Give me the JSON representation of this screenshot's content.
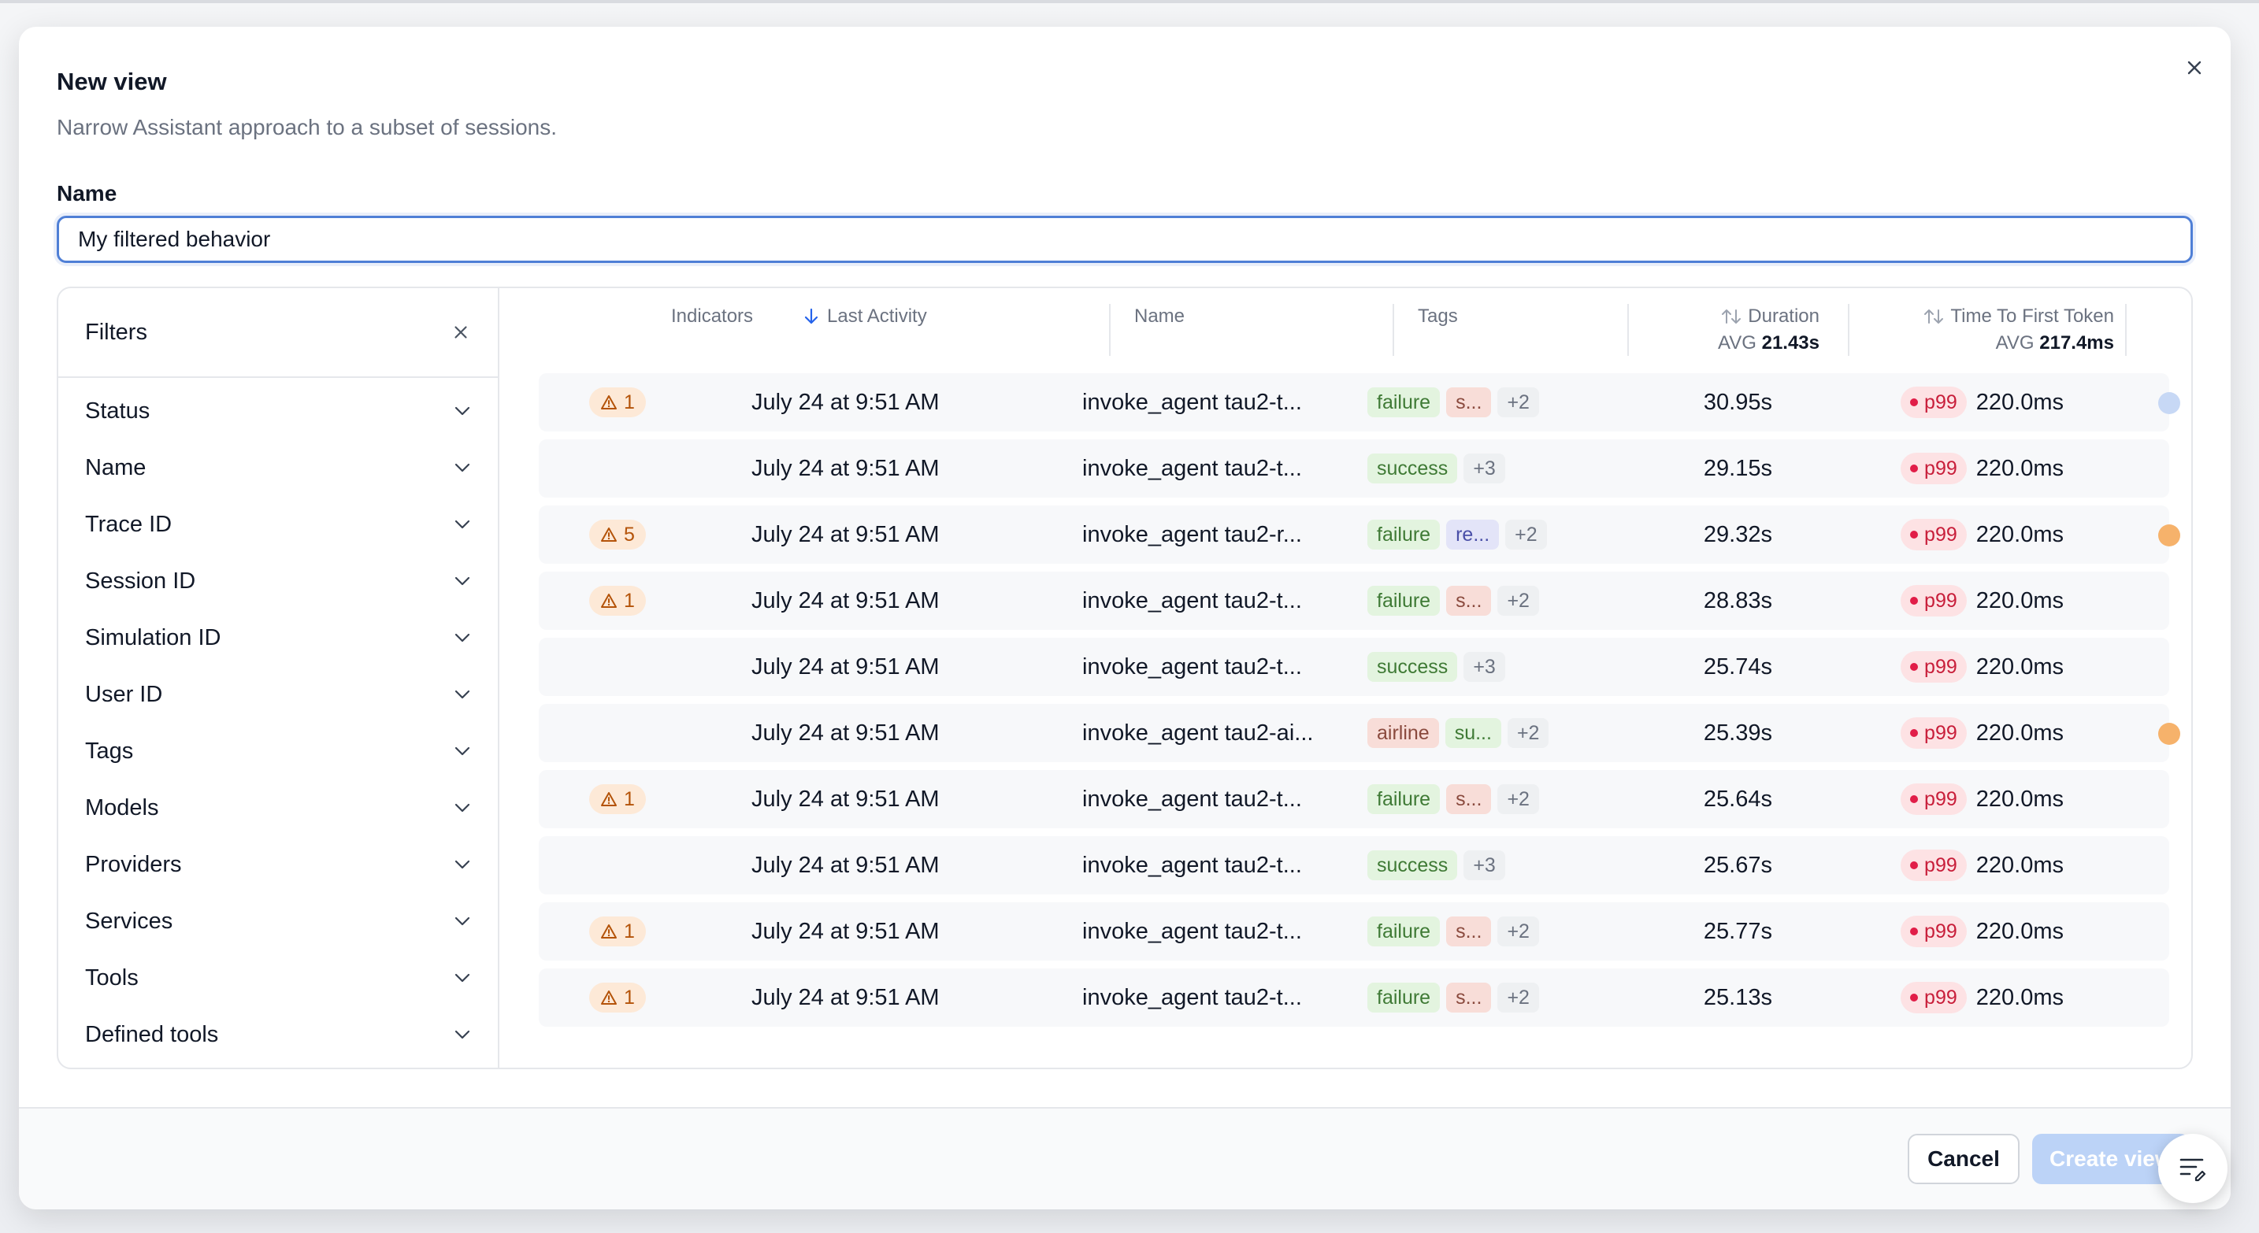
{
  "dialog": {
    "title": "New view",
    "subtitle": "Narrow Assistant approach to a subset of sessions.",
    "name_label": "Name",
    "name_value": "My filtered behavior"
  },
  "filters": {
    "title": "Filters",
    "items": [
      "Status",
      "Name",
      "Trace ID",
      "Session ID",
      "Simulation ID",
      "User ID",
      "Tags",
      "Models",
      "Providers",
      "Services",
      "Tools",
      "Defined tools"
    ]
  },
  "table": {
    "columns": {
      "indicators": "Indicators",
      "last_activity": "Last Activity",
      "name": "Name",
      "tags": "Tags",
      "duration": "Duration",
      "duration_avg_label": "AVG",
      "duration_avg": "21.43s",
      "ttft": "Time To First Token",
      "ttft_avg_label": "AVG",
      "ttft_avg": "217.4ms"
    },
    "rows": [
      {
        "indicator": "1",
        "last_activity": "July 24 at 9:51 AM",
        "name": "invoke_agent tau2-t...",
        "tags": [
          {
            "text": "failure",
            "kind": "failure"
          },
          {
            "text": "s...",
            "kind": "s"
          },
          {
            "text": "+2",
            "kind": "more"
          }
        ],
        "duration": "30.95s",
        "ttft_badge": "p99",
        "ttft": "220.0ms",
        "edge": "blue"
      },
      {
        "indicator": "",
        "last_activity": "July 24 at 9:51 AM",
        "name": "invoke_agent tau2-t...",
        "tags": [
          {
            "text": "success",
            "kind": "success"
          },
          {
            "text": "+3",
            "kind": "more"
          }
        ],
        "duration": "29.15s",
        "ttft_badge": "p99",
        "ttft": "220.0ms",
        "edge": ""
      },
      {
        "indicator": "5",
        "last_activity": "July 24 at 9:51 AM",
        "name": "invoke_agent tau2-r...",
        "tags": [
          {
            "text": "failure",
            "kind": "failure"
          },
          {
            "text": "re...",
            "kind": "re"
          },
          {
            "text": "+2",
            "kind": "more"
          }
        ],
        "duration": "29.32s",
        "ttft_badge": "p99",
        "ttft": "220.0ms",
        "edge": "orange"
      },
      {
        "indicator": "1",
        "last_activity": "July 24 at 9:51 AM",
        "name": "invoke_agent tau2-t...",
        "tags": [
          {
            "text": "failure",
            "kind": "failure"
          },
          {
            "text": "s...",
            "kind": "s"
          },
          {
            "text": "+2",
            "kind": "more"
          }
        ],
        "duration": "28.83s",
        "ttft_badge": "p99",
        "ttft": "220.0ms",
        "edge": ""
      },
      {
        "indicator": "",
        "last_activity": "July 24 at 9:51 AM",
        "name": "invoke_agent tau2-t...",
        "tags": [
          {
            "text": "success",
            "kind": "success"
          },
          {
            "text": "+3",
            "kind": "more"
          }
        ],
        "duration": "25.74s",
        "ttft_badge": "p99",
        "ttft": "220.0ms",
        "edge": ""
      },
      {
        "indicator": "",
        "last_activity": "July 24 at 9:51 AM",
        "name": "invoke_agent tau2-ai...",
        "tags": [
          {
            "text": "airline",
            "kind": "airline"
          },
          {
            "text": "su...",
            "kind": "su"
          },
          {
            "text": "+2",
            "kind": "more"
          }
        ],
        "duration": "25.39s",
        "ttft_badge": "p99",
        "ttft": "220.0ms",
        "edge": "orange"
      },
      {
        "indicator": "1",
        "last_activity": "July 24 at 9:51 AM",
        "name": "invoke_agent tau2-t...",
        "tags": [
          {
            "text": "failure",
            "kind": "failure"
          },
          {
            "text": "s...",
            "kind": "s"
          },
          {
            "text": "+2",
            "kind": "more"
          }
        ],
        "duration": "25.64s",
        "ttft_badge": "p99",
        "ttft": "220.0ms",
        "edge": ""
      },
      {
        "indicator": "",
        "last_activity": "July 24 at 9:51 AM",
        "name": "invoke_agent tau2-t...",
        "tags": [
          {
            "text": "success",
            "kind": "success"
          },
          {
            "text": "+3",
            "kind": "more"
          }
        ],
        "duration": "25.67s",
        "ttft_badge": "p99",
        "ttft": "220.0ms",
        "edge": ""
      },
      {
        "indicator": "1",
        "last_activity": "July 24 at 9:51 AM",
        "name": "invoke_agent tau2-t...",
        "tags": [
          {
            "text": "failure",
            "kind": "failure"
          },
          {
            "text": "s...",
            "kind": "s"
          },
          {
            "text": "+2",
            "kind": "more"
          }
        ],
        "duration": "25.77s",
        "ttft_badge": "p99",
        "ttft": "220.0ms",
        "edge": ""
      },
      {
        "indicator": "1",
        "last_activity": "July 24 at 9:51 AM",
        "name": "invoke_agent tau2-t...",
        "tags": [
          {
            "text": "failure",
            "kind": "failure"
          },
          {
            "text": "s...",
            "kind": "s"
          },
          {
            "text": "+2",
            "kind": "more"
          }
        ],
        "duration": "25.13s",
        "ttft_badge": "p99",
        "ttft": "220.0ms",
        "edge": ""
      }
    ]
  },
  "footer": {
    "cancel_label": "Cancel",
    "create_label": "Create view"
  },
  "colors": {
    "accent_border": "#4f7fd6",
    "create_button": "#bcd3f7",
    "warning": "#b45309",
    "p99": "#c81e3a",
    "edge_blue": "#c7d8f5",
    "edge_orange": "#f6b26b"
  },
  "icons": {
    "close": "close-icon",
    "filters_close": "close-icon",
    "chevron": "chevron-down-icon",
    "warning": "warning-triangle-icon",
    "sort_down": "arrow-down-icon",
    "sort_both": "sort-icon",
    "fab": "filter-edit-icon"
  }
}
